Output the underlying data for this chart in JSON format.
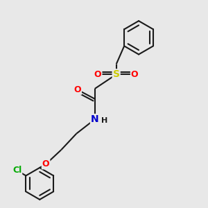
{
  "bg_color": "#e8e8e8",
  "bond_color": "#1a1a1a",
  "bond_width": 1.5,
  "O_color": "#ff0000",
  "S_color": "#cccc00",
  "N_color": "#0000cc",
  "Cl_color": "#00aa00",
  "H_color": "#1a1a1a",
  "font_size": 9,
  "figsize": [
    3.0,
    3.0
  ],
  "dpi": 100,
  "xlim": [
    0,
    10
  ],
  "ylim": [
    0,
    10
  ]
}
